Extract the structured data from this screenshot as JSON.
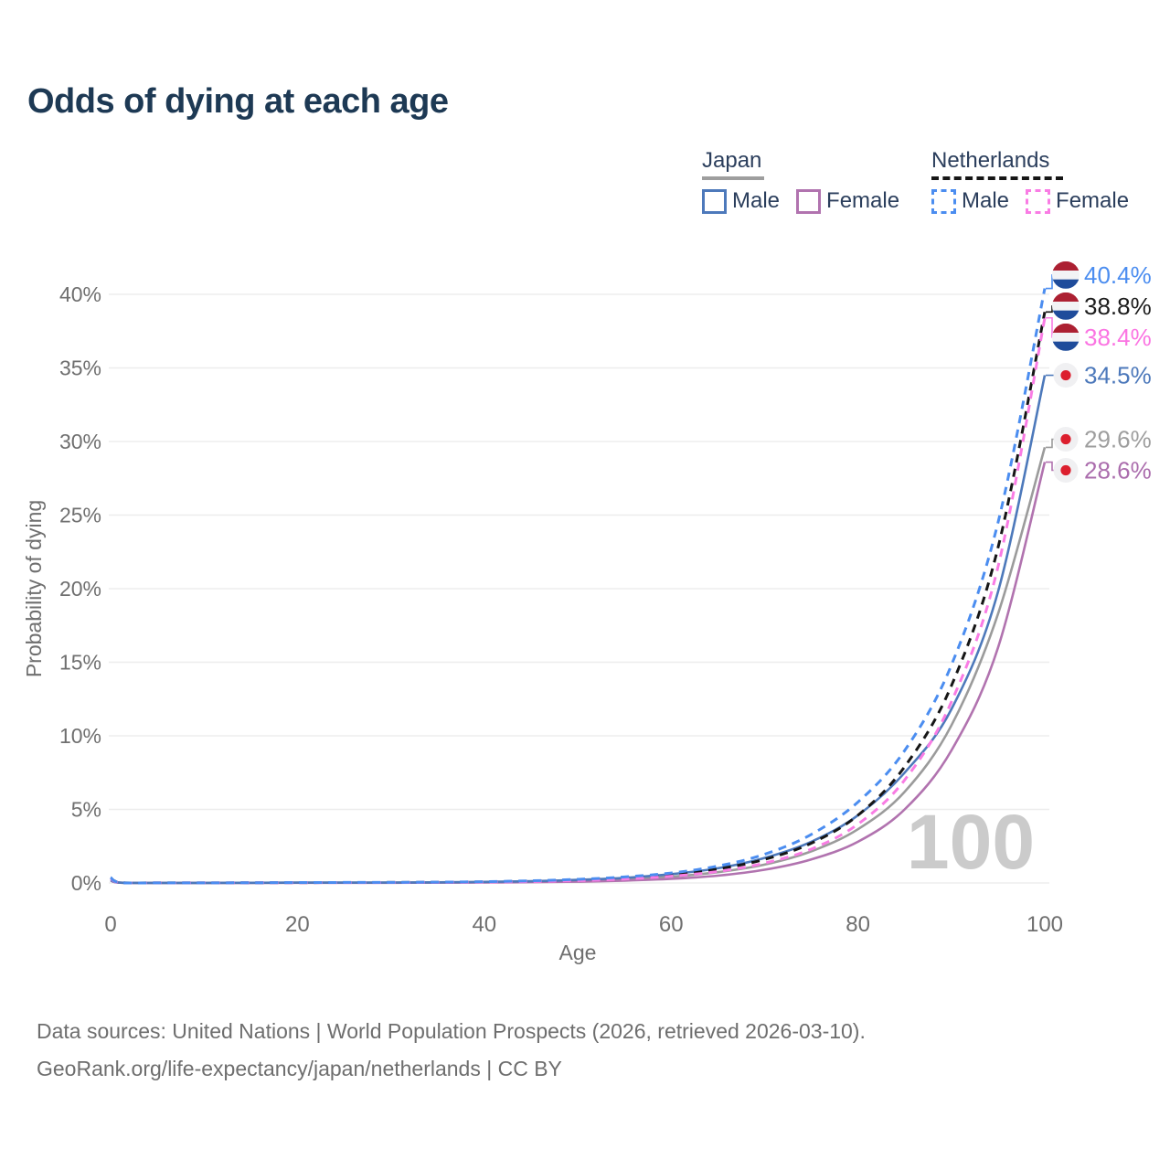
{
  "page": {
    "background": "#ffffff"
  },
  "legend": {
    "groups": [
      {
        "label": "Japan",
        "line_style": "solid",
        "line_color": "#9e9e9e",
        "items": [
          {
            "label": "Male",
            "color": "#4d79bb",
            "dash": false
          },
          {
            "label": "Female",
            "color": "#b173af",
            "dash": false
          }
        ]
      },
      {
        "label": "Netherlands",
        "line_style": "dashed",
        "line_color": "#161616",
        "items": [
          {
            "label": "Male",
            "color": "#4b8df0",
            "dash": true
          },
          {
            "label": "Female",
            "color": "#f97ce4",
            "dash": true
          }
        ]
      }
    ]
  },
  "chart_data": {
    "type": "line",
    "title": "Odds of dying at each age",
    "xlabel": "Age",
    "ylabel": "Probability of dying",
    "xlim": [
      0,
      100
    ],
    "ylim": [
      0,
      42
    ],
    "grid": "horizontal",
    "legend_position": "top-right",
    "watermark": "100",
    "xticks": [
      {
        "value": 0,
        "label": "0"
      },
      {
        "value": 20,
        "label": "20"
      },
      {
        "value": 40,
        "label": "40"
      },
      {
        "value": 60,
        "label": "60"
      },
      {
        "value": 80,
        "label": "80"
      },
      {
        "value": 100,
        "label": "100"
      }
    ],
    "yticks": [
      {
        "value": 0,
        "label": "0%"
      },
      {
        "value": 5,
        "label": "5%"
      },
      {
        "value": 10,
        "label": "10%"
      },
      {
        "value": 15,
        "label": "15%"
      },
      {
        "value": 20,
        "label": "20%"
      },
      {
        "value": 25,
        "label": "25%"
      },
      {
        "value": 30,
        "label": "30%"
      },
      {
        "value": 35,
        "label": "35%"
      },
      {
        "value": 40,
        "label": "40%"
      }
    ],
    "x": [
      0,
      1,
      5,
      10,
      15,
      20,
      25,
      30,
      35,
      40,
      45,
      50,
      55,
      60,
      65,
      70,
      75,
      80,
      85,
      90,
      95,
      100
    ],
    "series": [
      {
        "name": "Japan",
        "country": "japan",
        "flag": "japan-flag-icon",
        "color": "#9b9b9b",
        "dash": null,
        "width": 2.6,
        "end_value": 29.6,
        "end_label": "29.6%",
        "label_color": "#9e9e9e",
        "values": [
          0.18,
          0.02,
          0.005,
          0.006,
          0.01,
          0.016,
          0.019,
          0.023,
          0.034,
          0.055,
          0.09,
          0.15,
          0.26,
          0.43,
          0.73,
          1.25,
          2.15,
          3.65,
          6.2,
          10.7,
          18.3,
          29.6
        ]
      },
      {
        "name": "Japan Female",
        "country": "japan",
        "flag": "japan-flag-icon",
        "color": "#b173af",
        "dash": null,
        "width": 2.6,
        "end_value": 28.6,
        "end_label": "28.6%",
        "label_color": "#ab6dad",
        "values": [
          0.17,
          0.02,
          0.004,
          0.005,
          0.008,
          0.01,
          0.012,
          0.015,
          0.022,
          0.035,
          0.055,
          0.09,
          0.16,
          0.28,
          0.5,
          0.9,
          1.6,
          2.8,
          5.0,
          9.0,
          16.0,
          28.6
        ]
      },
      {
        "name": "Japan Male",
        "country": "japan",
        "flag": "japan-flag-icon",
        "color": "#4d79bb",
        "dash": null,
        "width": 2.6,
        "end_value": 34.5,
        "end_label": "34.5%",
        "label_color": "#4d79bb",
        "values": [
          0.19,
          0.025,
          0.005,
          0.007,
          0.012,
          0.022,
          0.025,
          0.03,
          0.045,
          0.075,
          0.12,
          0.21,
          0.35,
          0.6,
          1.0,
          1.7,
          2.8,
          4.6,
          7.5,
          11.8,
          19.8,
          34.5
        ]
      },
      {
        "name": "Netherlands",
        "country": "netherlands",
        "flag": "netherlands-flag-icon",
        "color": "#161616",
        "dash": [
          9,
          7
        ],
        "width": 3,
        "end_value": 38.8,
        "end_label": "38.8%",
        "label_color": "#1c1c1c",
        "values": [
          0.35,
          0.03,
          0.007,
          0.008,
          0.013,
          0.025,
          0.03,
          0.035,
          0.048,
          0.075,
          0.125,
          0.2,
          0.34,
          0.57,
          0.95,
          1.6,
          2.7,
          4.6,
          7.9,
          13.4,
          22.8,
          38.8
        ]
      },
      {
        "name": "Netherlands Female",
        "country": "netherlands",
        "flag": "netherlands-flag-icon",
        "color": "#f97ce4",
        "dash": [
          9,
          7
        ],
        "width": 3,
        "end_value": 38.4,
        "end_label": "38.4%",
        "label_color": "#fb74e2",
        "values": [
          0.32,
          0.025,
          0.006,
          0.007,
          0.011,
          0.02,
          0.024,
          0.028,
          0.04,
          0.06,
          0.1,
          0.16,
          0.27,
          0.46,
          0.78,
          1.35,
          2.3,
          4.0,
          7.0,
          12.3,
          21.5,
          38.4
        ]
      },
      {
        "name": "Netherlands Male",
        "country": "netherlands",
        "flag": "netherlands-flag-icon",
        "color": "#4b8df0",
        "dash": [
          9,
          7
        ],
        "width": 3,
        "end_value": 40.4,
        "end_label": "40.4%",
        "label_color": "#4b8df0",
        "values": [
          0.38,
          0.03,
          0.008,
          0.009,
          0.015,
          0.03,
          0.035,
          0.04,
          0.055,
          0.09,
          0.15,
          0.25,
          0.41,
          0.68,
          1.15,
          1.95,
          3.3,
          5.5,
          9.0,
          14.8,
          24.5,
          40.4
        ]
      }
    ],
    "flag_colors": {
      "netherlands_red": "#ac2032",
      "netherlands_white": "#f2f3f5",
      "netherlands_blue": "#1f4c9b",
      "japan_bg": "#f0f0f2",
      "japan_red": "#dc1f2e"
    },
    "style": {
      "grid_color": "#ededed",
      "tick_color": "#6f6f6f",
      "axis_title_color": "#6f6f6f",
      "watermark_color": "#cbcbcb",
      "title_color": "#1d3954"
    }
  },
  "footer": {
    "line1": "Data sources: United Nations | World Population Prospects (2026, retrieved 2026-03-10).",
    "line2": "GeoRank.org/life-expectancy/japan/netherlands | CC BY"
  }
}
